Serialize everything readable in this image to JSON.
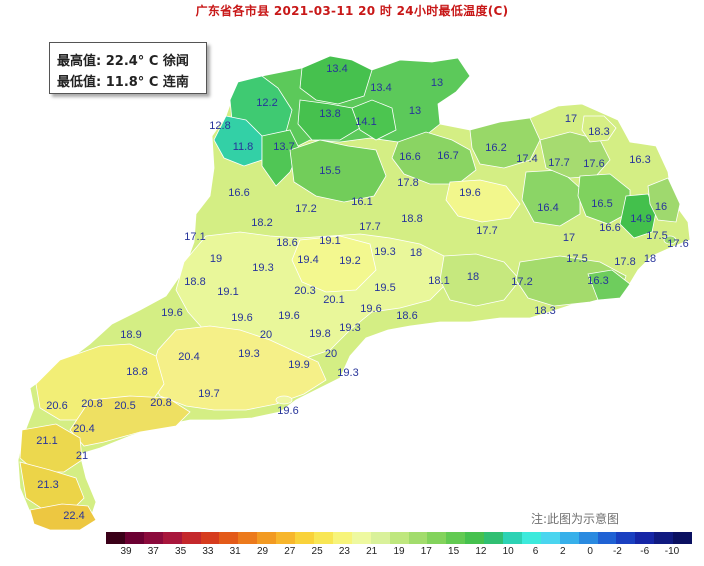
{
  "title": "广东省各市县 2021-03-11 20 时 24小时最低温度(C)",
  "stats": {
    "max_line": "最高值: 22.4° C 徐闻",
    "min_line": "最低值: 11.8° C 连南"
  },
  "note": "注:此图为示意图",
  "legend": {
    "colors": [
      "#3a0018",
      "#6b0032",
      "#8b0a3c",
      "#a8163c",
      "#c4282c",
      "#d63c1e",
      "#e35a19",
      "#ec7a1c",
      "#f29a22",
      "#f7b62c",
      "#f9d23a",
      "#f8e654",
      "#f7f47a",
      "#eef9a0",
      "#d9f19a",
      "#bfe77e",
      "#a2dc6c",
      "#83d35c",
      "#62ca52",
      "#45c14e",
      "#30bf72",
      "#2cd2b4",
      "#3ceadc",
      "#4ad5ef",
      "#37b0ea",
      "#2a8ae0",
      "#2062d4",
      "#1a40c0",
      "#1626a6",
      "#101a80",
      "#0a1060"
    ],
    "labels": [
      "39",
      "37",
      "35",
      "33",
      "31",
      "29",
      "27",
      "25",
      "23",
      "21",
      "19",
      "17",
      "15",
      "12",
      "10",
      "6",
      "2",
      "0",
      "-2",
      "-6",
      "-10"
    ]
  },
  "values": [
    {
      "id": "lianzhou",
      "v": "12.2"
    },
    {
      "id": "liannan",
      "v": "11.8"
    },
    {
      "id": "lianshan",
      "v": "12.8"
    },
    {
      "id": "yangshan",
      "v": "13.7"
    },
    {
      "id": "ruyuan",
      "v": "13.8"
    },
    {
      "id": "lechang",
      "v": "13.4"
    },
    {
      "id": "renhua",
      "v": "13.4"
    },
    {
      "id": "nanxiong",
      "v": "13"
    },
    {
      "id": "shixing",
      "v": "13"
    },
    {
      "id": "qujiang",
      "v": "14.1"
    },
    {
      "id": "yingde",
      "v": "15.5"
    },
    {
      "id": "lianping",
      "v": "16.6"
    },
    {
      "id": "wengyuan",
      "v": "16.7"
    },
    {
      "id": "heping",
      "v": "16.2"
    },
    {
      "id": "pingyuan",
      "v": "17"
    },
    {
      "id": "jiaoling",
      "v": "18.3"
    },
    {
      "id": "xingning",
      "v": "17.4"
    },
    {
      "id": "meixian",
      "v": "17.7"
    },
    {
      "id": "meizhou",
      "v": "17.6"
    },
    {
      "id": "dabu",
      "v": "16.3"
    },
    {
      "id": "huaiji",
      "v": "16.6"
    },
    {
      "id": "guangning",
      "v": "17.2"
    },
    {
      "id": "qingxin",
      "v": "16.1"
    },
    {
      "id": "fogang",
      "v": "17.8"
    },
    {
      "id": "longmen",
      "v": "19.6"
    },
    {
      "id": "wuhua",
      "v": "16.4"
    },
    {
      "id": "fengshun",
      "v": "16.5"
    },
    {
      "id": "raoping",
      "v": "16"
    },
    {
      "id": "chaozhou",
      "v": "14.9"
    },
    {
      "id": "nanao",
      "v": "17.5"
    },
    {
      "id": "shantou",
      "v": "17.6"
    },
    {
      "id": "fengkai",
      "v": "17.1"
    },
    {
      "id": "deqing",
      "v": "18.2"
    },
    {
      "id": "sihui",
      "v": "18.6"
    },
    {
      "id": "huadu",
      "v": "19.1"
    },
    {
      "id": "conghua",
      "v": "17.7"
    },
    {
      "id": "zengcheng",
      "v": "18.8"
    },
    {
      "id": "heyuan",
      "v": "17.7"
    },
    {
      "id": "zijin",
      "v": "17"
    },
    {
      "id": "jieyang",
      "v": "16.6"
    },
    {
      "id": "chenghai",
      "v": "18"
    },
    {
      "id": "yunan",
      "v": "19"
    },
    {
      "id": "gaoyao",
      "v": "19.3"
    },
    {
      "id": "nanhai",
      "v": "19.4"
    },
    {
      "id": "guangzhou",
      "v": "19.2"
    },
    {
      "id": "boluo",
      "v": "19.3"
    },
    {
      "id": "huiyang",
      "v": "18"
    },
    {
      "id": "lufeng",
      "v": "17.5"
    },
    {
      "id": "puning",
      "v": "17.8"
    },
    {
      "id": "huilai",
      "v": "16.3"
    },
    {
      "id": "luoding",
      "v": "18.8"
    },
    {
      "id": "xinxing",
      "v": "19.1"
    },
    {
      "id": "huidong",
      "v": "18.1"
    },
    {
      "id": "haifeng",
      "v": "18"
    },
    {
      "id": "shunde",
      "v": "20.3"
    },
    {
      "id": "dongguan",
      "v": "20.1"
    },
    {
      "id": "huizhou",
      "v": "19.5"
    },
    {
      "id": "shanwei",
      "v": "17.2"
    },
    {
      "id": "jiexi",
      "v": "18.3"
    },
    {
      "id": "yunfu",
      "v": "19.6"
    },
    {
      "id": "xinhui",
      "v": "19.6"
    },
    {
      "id": "heshan",
      "v": "19.6"
    },
    {
      "id": "shenzhen",
      "v": "19.6"
    },
    {
      "id": "dapeng",
      "v": "18.6"
    },
    {
      "id": "xinyi",
      "v": "18.9"
    },
    {
      "id": "kaiping",
      "v": "20"
    },
    {
      "id": "zhongshan",
      "v": "19.8"
    },
    {
      "id": "baoan",
      "v": "19.3"
    },
    {
      "id": "yangchun",
      "v": "20.4"
    },
    {
      "id": "enping",
      "v": "19.3"
    },
    {
      "id": "zhuhai",
      "v": "20"
    },
    {
      "id": "taishan",
      "v": "19.9"
    },
    {
      "id": "macau",
      "v": "19.3"
    },
    {
      "id": "gaozhou",
      "v": "18.8"
    },
    {
      "id": "yangjiang",
      "v": "19.7"
    },
    {
      "id": "shangchuan",
      "v": "19.6"
    },
    {
      "id": "lianjiang",
      "v": "20.6"
    },
    {
      "id": "huazhou",
      "v": "20.8"
    },
    {
      "id": "wuchuan",
      "v": "20.5"
    },
    {
      "id": "dianbai",
      "v": "20.8"
    },
    {
      "id": "zhanjiang",
      "v": "20.4"
    },
    {
      "id": "suixi",
      "v": "21.1"
    },
    {
      "id": "donghai",
      "v": "21"
    },
    {
      "id": "leizhou",
      "v": "21.3"
    },
    {
      "id": "xuwen",
      "v": "22.4"
    }
  ]
}
